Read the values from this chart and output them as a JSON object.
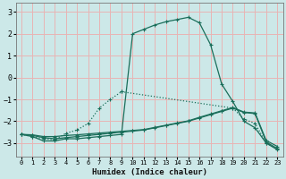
{
  "xlabel": "Humidex (Indice chaleur)",
  "background_color": "#cce8e8",
  "grid_color": "#e8b4b4",
  "line_color": "#1a6e5a",
  "xlim": [
    -0.5,
    23.5
  ],
  "ylim": [
    -3.6,
    3.4
  ],
  "xticks": [
    0,
    1,
    2,
    3,
    4,
    5,
    6,
    7,
    8,
    9,
    10,
    11,
    12,
    13,
    14,
    15,
    16,
    17,
    18,
    19,
    20,
    21,
    22,
    23
  ],
  "yticks": [
    -3,
    -2,
    -1,
    0,
    1,
    2,
    3
  ],
  "curve1_x": [
    0,
    1,
    2,
    3,
    4,
    5,
    6,
    7,
    8,
    9,
    10,
    11,
    12,
    13,
    14,
    15,
    16,
    17,
    18,
    19,
    20,
    21,
    22,
    23
  ],
  "curve1_y": [
    -2.6,
    -2.7,
    -2.9,
    -2.9,
    -2.8,
    -2.8,
    -2.75,
    -2.7,
    -2.65,
    -2.6,
    2.0,
    2.2,
    2.4,
    2.55,
    2.65,
    2.75,
    2.5,
    1.5,
    -0.3,
    -1.1,
    -2.0,
    -2.3,
    -3.0,
    -3.3
  ],
  "curve2_x": [
    0,
    1,
    2,
    3,
    4,
    5,
    6,
    7,
    8,
    9,
    19,
    20,
    21,
    22,
    23
  ],
  "curve2_y": [
    -2.6,
    -2.7,
    -2.8,
    -2.85,
    -2.55,
    -2.4,
    -2.1,
    -1.4,
    -1.0,
    -0.65,
    -1.4,
    -1.9,
    -2.1,
    -3.0,
    -3.25
  ],
  "curve3_x": [
    0,
    1,
    2,
    3,
    4,
    5,
    6,
    7,
    8,
    9,
    10,
    11,
    12,
    13,
    14,
    15,
    16,
    17,
    18,
    19,
    20,
    21,
    22,
    23
  ],
  "curve3_y": [
    -2.6,
    -2.65,
    -2.75,
    -2.8,
    -2.75,
    -2.7,
    -2.65,
    -2.6,
    -2.55,
    -2.5,
    -2.45,
    -2.4,
    -2.3,
    -2.2,
    -2.1,
    -2.0,
    -1.85,
    -1.7,
    -1.55,
    -1.4,
    -1.6,
    -1.65,
    -2.95,
    -3.25
  ],
  "curve4_x": [
    0,
    1,
    2,
    3,
    4,
    5,
    6,
    7,
    8,
    9,
    10,
    11,
    12,
    13,
    14,
    15,
    16,
    17,
    18,
    19,
    20,
    21,
    22,
    23
  ],
  "curve4_y": [
    -2.6,
    -2.62,
    -2.7,
    -2.7,
    -2.65,
    -2.62,
    -2.58,
    -2.54,
    -2.5,
    -2.46,
    -2.42,
    -2.38,
    -2.28,
    -2.18,
    -2.08,
    -1.98,
    -1.82,
    -1.67,
    -1.52,
    -1.37,
    -1.58,
    -1.62,
    -2.88,
    -3.15
  ]
}
